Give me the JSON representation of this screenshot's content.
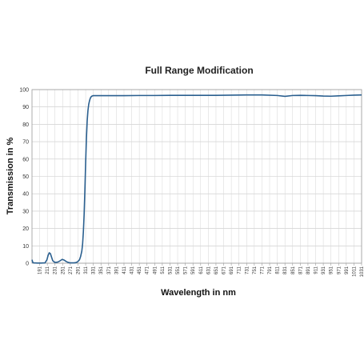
{
  "chart_data": {
    "type": "line",
    "title": "Full Range Modification",
    "xlabel": "Wavelength in nm",
    "ylabel": "Transmission in %",
    "ylim": [
      0,
      100
    ],
    "yticks": [
      0,
      10,
      20,
      30,
      40,
      50,
      60,
      70,
      80,
      90,
      100
    ],
    "xlim": [
      171,
      1031
    ],
    "xtick_labels": [
      "191",
      "211",
      "231",
      "251",
      "271",
      "291",
      "311",
      "331",
      "351",
      "371",
      "391",
      "411",
      "431",
      "451",
      "471",
      "491",
      "511",
      "531",
      "551",
      "571",
      "591",
      "611",
      "631",
      "651",
      "671",
      "691",
      "711",
      "731",
      "751",
      "771",
      "791",
      "811",
      "831",
      "851",
      "871",
      "891",
      "911",
      "931",
      "951",
      "971",
      "991",
      "1011",
      "1031"
    ],
    "grid": true,
    "series": [
      {
        "color": "#2a5f8f",
        "x": [
          171,
          173,
          175,
          185,
          195,
          205,
          210,
          213,
          216,
          219,
          222,
          225,
          230,
          235,
          240,
          245,
          250,
          255,
          260,
          265,
          270,
          275,
          280,
          285,
          290,
          295,
          298,
          301,
          303,
          305,
          307,
          309,
          311,
          313,
          315,
          317,
          319,
          321,
          323,
          325,
          327,
          329,
          331,
          333,
          335,
          337,
          340,
          345,
          351,
          371,
          411,
          451,
          491,
          531,
          571,
          611,
          651,
          691,
          731,
          771,
          811,
          831,
          851,
          871,
          891,
          911,
          931,
          951,
          971,
          991,
          1011,
          1031
        ],
        "y": [
          2,
          0.5,
          0.2,
          0.1,
          0.1,
          0.2,
          2,
          4.5,
          6,
          5.5,
          3.5,
          1.5,
          0.5,
          0.5,
          0.8,
          1.5,
          2.2,
          1.8,
          1,
          0.5,
          0.2,
          0.2,
          0.2,
          0.3,
          0.8,
          2,
          4,
          7,
          11,
          18,
          28,
          42,
          58,
          72,
          82,
          88,
          91.5,
          93.5,
          95,
          95.8,
          96.2,
          96.4,
          96.5,
          96.5,
          96.5,
          96.5,
          96.5,
          96.5,
          96.5,
          96.5,
          96.5,
          96.6,
          96.6,
          96.7,
          96.7,
          96.7,
          96.7,
          96.8,
          96.9,
          96.9,
          96.6,
          96.1,
          96.6,
          96.7,
          96.6,
          96.5,
          96.3,
          96.2,
          96.4,
          96.6,
          96.8,
          96.9
        ]
      }
    ]
  }
}
